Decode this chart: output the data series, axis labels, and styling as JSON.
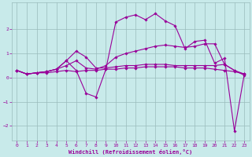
{
  "bg_color": "#c8eaea",
  "line_color": "#990099",
  "grid_color": "#99bbbb",
  "xlabel": "Windchill (Refroidissement éolien,°C)",
  "ylim": [
    -2.6,
    3.1
  ],
  "xlim": [
    -0.5,
    23.5
  ],
  "yticks": [
    -2,
    -1,
    0,
    1,
    2
  ],
  "xticks": [
    0,
    1,
    2,
    3,
    4,
    5,
    6,
    7,
    8,
    9,
    10,
    11,
    12,
    13,
    14,
    15,
    16,
    17,
    18,
    19,
    20,
    21,
    22,
    23
  ],
  "series": [
    [
      0.3,
      0.15,
      0.2,
      0.2,
      0.25,
      0.3,
      0.25,
      0.3,
      0.3,
      0.35,
      0.35,
      0.4,
      0.4,
      0.45,
      0.45,
      0.45,
      0.45,
      0.4,
      0.4,
      0.4,
      0.35,
      0.3,
      0.25,
      0.15
    ],
    [
      0.3,
      0.15,
      0.2,
      0.25,
      0.35,
      0.5,
      0.7,
      0.4,
      0.35,
      0.5,
      0.85,
      1.0,
      1.1,
      1.2,
      1.3,
      1.35,
      1.3,
      1.25,
      1.3,
      1.4,
      1.4,
      0.55,
      0.3,
      0.15
    ],
    [
      0.3,
      0.15,
      0.2,
      0.25,
      0.35,
      0.7,
      1.1,
      0.85,
      0.4,
      0.4,
      0.45,
      0.5,
      0.5,
      0.55,
      0.55,
      0.55,
      0.5,
      0.5,
      0.5,
      0.5,
      0.5,
      0.55,
      0.3,
      0.1
    ],
    [
      0.3,
      0.15,
      0.2,
      0.25,
      0.35,
      0.7,
      0.3,
      -0.65,
      -0.8,
      0.35,
      2.3,
      2.5,
      2.6,
      2.4,
      2.65,
      2.35,
      2.15,
      1.2,
      1.5,
      1.55,
      0.6,
      0.8,
      -2.2,
      0.15
    ]
  ]
}
